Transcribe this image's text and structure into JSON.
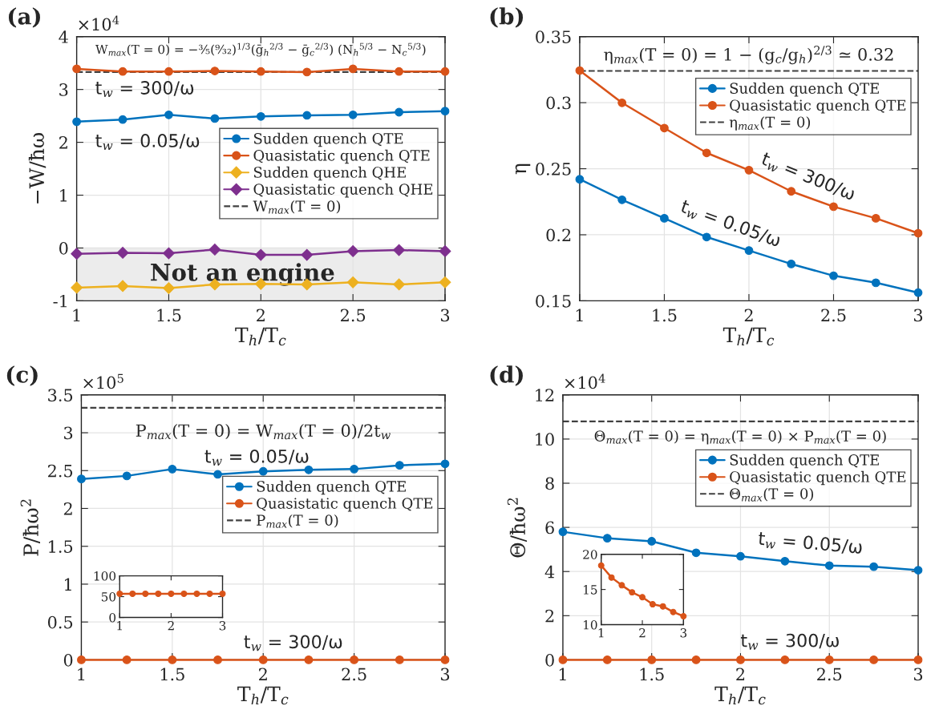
{
  "chart_data": [
    {
      "type": "line",
      "x": [
        1,
        1.25,
        1.5,
        1.75,
        2,
        2.25,
        2.5,
        2.75,
        3
      ],
      "xlabel": "T$_{h}$/T$_{c}$",
      "ylabel": "−W/ħω",
      "xlim": [
        1,
        3
      ],
      "ylim": [
        -1,
        4
      ],
      "xticks": [
        1,
        1.5,
        2,
        2.5,
        3
      ],
      "yticks": [
        -1,
        0,
        1,
        2,
        3,
        4
      ],
      "grid": true,
      "legend": "right",
      "series": [
        {
          "name": "Sudden quench QTE",
          "color": "#0072bd",
          "marker": "circle",
          "line_style": "solid",
          "values": [
            2.39,
            2.43,
            2.52,
            2.45,
            2.49,
            2.51,
            2.52,
            2.57,
            2.59
          ]
        },
        {
          "name": "Quasistatic quench QTE",
          "color": "#d95319",
          "marker": "circle",
          "line_style": "solid",
          "values": [
            3.39,
            3.34,
            3.34,
            3.35,
            3.34,
            3.33,
            3.39,
            3.34,
            3.34
          ]
        },
        {
          "name": "Sudden quench QHE",
          "color": "#edb120",
          "marker": "diamond",
          "line_style": "solid",
          "values": [
            -0.75,
            -0.72,
            -0.76,
            -0.69,
            -0.68,
            -0.69,
            -0.65,
            -0.69,
            -0.65
          ]
        },
        {
          "name": "Quasistatic quench QHE",
          "color": "#7e2f8e",
          "marker": "diamond",
          "line_style": "solid",
          "values": [
            -0.11,
            -0.09,
            -0.1,
            -0.03,
            -0.13,
            -0.13,
            -0.06,
            -0.04,
            -0.06
          ]
        },
        {
          "name": "W$_{max}$(T = 0)",
          "color": "#404040",
          "marker": "none",
          "line_style": "dashed",
          "values": [
            3.33,
            3.33,
            3.33,
            3.33,
            3.33,
            3.33,
            3.33,
            3.33,
            3.33
          ]
        }
      ],
      "bands": [
        {
          "axis": "y",
          "from": -1,
          "to": 0,
          "label": "Not an engine",
          "color": "#ececec"
        }
      ],
      "annotations": [
        "(a)",
        "×10$^{4}$",
        "W$_{max}$(T = 0) = −³⁄₅(⁹⁄₃₂)$^{1/3}$(ḡ$_{h}$$^{2/3}$ − ḡ$_{c}$$^{2/3}$) (N$_{h}$$^{5/3}$ − N$_{c}$$^{5/3}$)",
        "t$_{w}$ = 300/ω",
        "t$_{w}$ = 0.05/ω"
      ]
    },
    {
      "type": "line",
      "x": [
        1,
        1.25,
        1.5,
        1.75,
        2,
        2.25,
        2.5,
        2.75,
        3
      ],
      "xlabel": "T$_{h}$/T$_{c}$",
      "ylabel": "η",
      "xlim": [
        1,
        3
      ],
      "ylim": [
        0.15,
        0.35
      ],
      "xticks": [
        1,
        1.5,
        2,
        2.5,
        3
      ],
      "yticks": [
        0.15,
        0.2,
        0.25,
        0.3,
        0.35
      ],
      "grid": true,
      "legend": "top right",
      "series": [
        {
          "name": "Sudden quench QTE",
          "color": "#0072bd",
          "marker": "circle",
          "line_style": "solid",
          "values": [
            0.242,
            0.2265,
            0.2125,
            0.1983,
            0.1881,
            0.1779,
            0.169,
            0.1637,
            0.1562
          ]
        },
        {
          "name": "Quasistatic quench QTE",
          "color": "#d95319",
          "marker": "circle",
          "line_style": "solid",
          "values": [
            0.3243,
            0.2999,
            0.2808,
            0.262,
            0.2489,
            0.2329,
            0.2213,
            0.2125,
            0.2012
          ]
        },
        {
          "name": "η$_{max}$(T = 0)",
          "color": "#404040",
          "marker": "none",
          "line_style": "dashed",
          "values": [
            0.324,
            0.324,
            0.324,
            0.324,
            0.324,
            0.324,
            0.324,
            0.324,
            0.324
          ]
        }
      ],
      "annotations": [
        "(b)",
        "η$_{max}$(T = 0) = 1 − (g$_{c}$/g$_{h}$)$^{2/3}$ ≃ 0.32",
        "t$_{w}$ = 300/ω",
        "t$_{w}$ = 0.05/ω"
      ]
    },
    {
      "type": "line",
      "x": [
        1,
        1.25,
        1.5,
        1.75,
        2,
        2.25,
        2.5,
        2.75,
        3
      ],
      "xlabel": "T$_{h}$/T$_{c}$",
      "ylabel": "P/ħω$^{2}$",
      "xlim": [
        1,
        3
      ],
      "ylim": [
        0,
        3.5
      ],
      "xticks": [
        1,
        1.5,
        2,
        2.5,
        3
      ],
      "yticks": [
        0,
        0.5,
        1,
        1.5,
        2,
        2.5,
        3,
        3.5
      ],
      "grid": true,
      "legend": "right",
      "series": [
        {
          "name": "Sudden quench QTE",
          "color": "#0072bd",
          "marker": "circle",
          "line_style": "solid",
          "values": [
            2.39,
            2.43,
            2.52,
            2.45,
            2.49,
            2.51,
            2.52,
            2.57,
            2.59
          ]
        },
        {
          "name": "Quasistatic quench QTE",
          "color": "#d95319",
          "marker": "circle",
          "line_style": "solid",
          "values": [
            0,
            0,
            0,
            0,
            0,
            0,
            0,
            0,
            0
          ]
        },
        {
          "name": "P$_{max}$(T = 0)",
          "color": "#404040",
          "marker": "none",
          "line_style": "dashed",
          "values": [
            3.33,
            3.33,
            3.33,
            3.33,
            3.33,
            3.33,
            3.33,
            3.33,
            3.33
          ]
        }
      ],
      "annotations": [
        "(c)",
        "×10$^{5}$",
        "P$_{max}$(T = 0) = W$_{max}$(T = 0)/2t$_{w}$",
        "t$_{w}$ = 0.05/ω",
        "t$_{w}$ = 300/ω"
      ]
    },
    {
      "type": "line",
      "x": [
        1,
        1.25,
        1.5,
        1.75,
        2,
        2.25,
        2.5,
        2.75,
        3
      ],
      "xlim": [
        1,
        3
      ],
      "ylim": [
        0,
        100
      ],
      "xticks": [
        1,
        2,
        3
      ],
      "yticks": [
        0,
        50,
        100
      ],
      "series": [
        {
          "color": "#d95319",
          "marker": "circle",
          "line_style": "solid",
          "values": [
            57,
            57,
            57,
            57,
            57,
            57,
            57,
            57,
            57
          ]
        }
      ]
    },
    {
      "type": "line",
      "x": [
        1,
        1.25,
        1.5,
        1.75,
        2,
        2.25,
        2.5,
        2.75,
        3
      ],
      "xlabel": "T$_{h}$/T$_{c}$",
      "ylabel": "Θ/ħω$^{2}$",
      "xlim": [
        1,
        3
      ],
      "ylim": [
        0,
        12
      ],
      "xticks": [
        1,
        1.5,
        2,
        2.5,
        3
      ],
      "yticks": [
        0,
        2,
        4,
        6,
        8,
        10,
        12
      ],
      "grid": true,
      "legend": "top right",
      "series": [
        {
          "name": "Sudden quench QTE",
          "color": "#0072bd",
          "marker": "circle",
          "line_style": "solid",
          "values": [
            5.8,
            5.51,
            5.37,
            4.85,
            4.69,
            4.47,
            4.27,
            4.22,
            4.06
          ]
        },
        {
          "name": "Quasistatic quench QTE",
          "color": "#d95319",
          "marker": "circle",
          "line_style": "solid",
          "values": [
            0,
            0,
            0,
            0,
            0,
            0,
            0,
            0,
            0
          ]
        },
        {
          "name": "Θ$_{max}$(T = 0)",
          "color": "#404040",
          "marker": "none",
          "line_style": "dashed",
          "values": [
            10.8,
            10.8,
            10.8,
            10.8,
            10.8,
            10.8,
            10.8,
            10.8,
            10.8
          ]
        }
      ],
      "annotations": [
        "(d)",
        "×10$^{4}$",
        "Θ$_{max}$(T = 0) = η$_{max}$(T = 0) × P$_{max}$(T = 0)",
        "t$_{w}$ = 0.05/ω",
        "t$_{w}$ = 300/ω"
      ]
    },
    {
      "type": "line",
      "x": [
        1,
        1.25,
        1.5,
        1.75,
        2,
        2.25,
        2.5,
        2.75,
        3
      ],
      "xlim": [
        1,
        3
      ],
      "ylim": [
        10,
        20
      ],
      "xticks": [
        1,
        2,
        3
      ],
      "yticks": [
        10,
        15,
        20
      ],
      "series": [
        {
          "color": "#d95319",
          "marker": "circle",
          "line_style": "solid",
          "values": [
            18.4,
            16.7,
            15.6,
            14.6,
            13.9,
            12.9,
            12.6,
            11.8,
            11.2
          ]
        }
      ]
    }
  ]
}
